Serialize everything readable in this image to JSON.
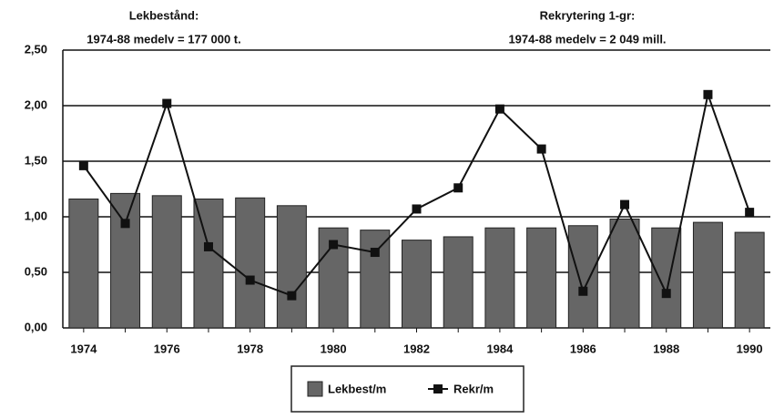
{
  "chart_data": {
    "type": "bar_line",
    "annotations": [
      "Lekbestånd:",
      "1974-88 medelv = 177 000 t.",
      "Rekrytering 1-gr:",
      "1974-88 medelv = 2 049 mill."
    ],
    "categories": [
      "1974",
      null,
      "1976",
      null,
      "1978",
      null,
      "1980",
      null,
      "1982",
      null,
      "1984",
      null,
      "1986",
      null,
      "1988",
      null,
      "1990"
    ],
    "series": [
      {
        "name": "Lekbest/m",
        "type": "bar",
        "color": "#666666",
        "values": [
          1.16,
          1.21,
          1.19,
          1.16,
          1.17,
          1.1,
          0.9,
          0.88,
          0.79,
          0.82,
          0.9,
          0.9,
          0.92,
          0.98,
          0.9,
          0.95,
          0.86
        ]
      },
      {
        "name": "Rekr/m",
        "type": "line",
        "color": "#111111",
        "values": [
          1.46,
          0.94,
          2.02,
          0.73,
          0.43,
          0.29,
          0.75,
          0.68,
          1.07,
          1.26,
          1.97,
          1.61,
          0.33,
          1.11,
          0.31,
          2.1,
          1.04
        ]
      }
    ],
    "ylim": [
      0,
      2.5
    ],
    "yticks": [
      {
        "value": 0,
        "label": "0,00"
      },
      {
        "value": 0.5,
        "label": "0,50"
      },
      {
        "value": 1,
        "label": "1,00"
      },
      {
        "value": 1.5,
        "label": "1,50"
      },
      {
        "value": 2,
        "label": "2,00"
      },
      {
        "value": 2.5,
        "label": "2,50"
      }
    ],
    "grid": true,
    "legend": "bottom"
  }
}
